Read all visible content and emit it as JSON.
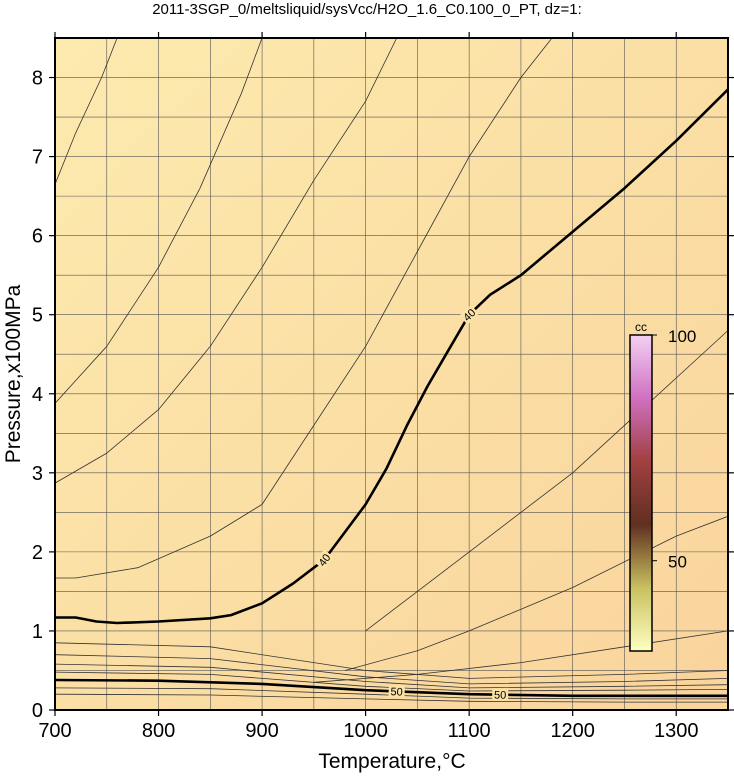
{
  "chart_data": {
    "type": "contour",
    "title": "2011-3SGP_0/meltsliquid/sysVcc/H2O_1.6_C0.100_0_PT, dz=1:",
    "xlabel": "Temperature,°C",
    "ylabel": "Pressure,x100MPa",
    "xlim": [
      700,
      1350
    ],
    "ylim": [
      0,
      8.5
    ],
    "xticks": [
      700,
      800,
      900,
      1000,
      1100,
      1200,
      1300
    ],
    "yticks": [
      0,
      1,
      2,
      3,
      4,
      5,
      6,
      7,
      8
    ],
    "xgrid": [
      750,
      800,
      850,
      900,
      950,
      1000,
      1050,
      1100,
      1150,
      1200,
      1250,
      1300
    ],
    "ygrid": [
      0.5,
      1,
      1.5,
      2,
      2.5,
      3,
      3.5,
      4,
      4.5,
      5,
      5.5,
      6,
      6.5,
      7,
      7.5,
      8
    ],
    "grid": true,
    "contours": [
      {
        "level": 40,
        "color": "#000000",
        "x": [
          700,
          720,
          740,
          760,
          800,
          850,
          870,
          900,
          930,
          960,
          980,
          1000,
          1020,
          1040,
          1060,
          1080,
          1100,
          1120,
          1150,
          1200,
          1250,
          1300,
          1350
        ],
        "y": [
          1.17,
          1.17,
          1.12,
          1.1,
          1.12,
          1.16,
          1.2,
          1.35,
          1.6,
          1.9,
          2.25,
          2.6,
          3.05,
          3.6,
          4.1,
          4.55,
          5.0,
          5.25,
          5.5,
          6.05,
          6.6,
          7.2,
          7.85
        ]
      },
      {
        "level": 50,
        "color": "#000000",
        "x": [
          700,
          800,
          900,
          1000,
          1100,
          1200,
          1350
        ],
        "y": [
          0.38,
          0.37,
          0.33,
          0.25,
          0.2,
          0.18,
          0.18
        ]
      },
      {
        "color": "#333333",
        "x": [
          700,
          720,
          745,
          760
        ],
        "y": [
          6.65,
          7.3,
          8.0,
          8.5
        ]
      },
      {
        "color": "#333333",
        "x": [
          700,
          750,
          800,
          840,
          880,
          900
        ],
        "y": [
          3.88,
          4.6,
          5.6,
          6.6,
          7.8,
          8.5
        ]
      },
      {
        "color": "#333333",
        "x": [
          700,
          750,
          800,
          850,
          900,
          950,
          1000,
          1030
        ],
        "y": [
          2.87,
          3.25,
          3.8,
          4.6,
          5.6,
          6.7,
          7.7,
          8.5
        ]
      },
      {
        "color": "#333333",
        "x": [
          700,
          720,
          780,
          850,
          900,
          950,
          1000,
          1050,
          1100,
          1150,
          1180
        ],
        "y": [
          1.67,
          1.67,
          1.8,
          2.2,
          2.6,
          3.6,
          4.6,
          5.8,
          7.0,
          8.0,
          8.5
        ]
      },
      {
        "color": "#333333",
        "x": [
          1000,
          1050,
          1100,
          1200,
          1300,
          1350
        ],
        "y": [
          1.0,
          1.5,
          2.0,
          3.0,
          4.2,
          4.8
        ]
      },
      {
        "color": "#333333",
        "x": [
          980,
          1050,
          1100,
          1200,
          1300,
          1350
        ],
        "y": [
          0.5,
          0.75,
          1.0,
          1.55,
          2.2,
          2.45
        ]
      },
      {
        "color": "#333333",
        "x": [
          950,
          1050,
          1150,
          1250,
          1350
        ],
        "y": [
          0.35,
          0.45,
          0.6,
          0.8,
          1.0
        ]
      },
      {
        "color": "#333333",
        "x": [
          700,
          850,
          1000,
          1100,
          1250,
          1350
        ],
        "y": [
          0.85,
          0.8,
          0.5,
          0.4,
          0.45,
          0.5
        ]
      },
      {
        "color": "#333333",
        "x": [
          700,
          850,
          1000,
          1100,
          1250,
          1350
        ],
        "y": [
          0.7,
          0.65,
          0.42,
          0.33,
          0.36,
          0.4
        ]
      },
      {
        "color": "#333333",
        "x": [
          700,
          850,
          1000,
          1100,
          1250,
          1350
        ],
        "y": [
          0.58,
          0.54,
          0.36,
          0.28,
          0.3,
          0.32
        ]
      },
      {
        "color": "#333333",
        "x": [
          700,
          850,
          1000,
          1100,
          1250,
          1350
        ],
        "y": [
          0.48,
          0.45,
          0.3,
          0.24,
          0.25,
          0.26
        ]
      },
      {
        "color": "#333333",
        "x": [
          700,
          850,
          1000,
          1100,
          1250,
          1350
        ],
        "y": [
          0.28,
          0.27,
          0.2,
          0.15,
          0.14,
          0.14
        ]
      },
      {
        "color": "#333333",
        "x": [
          700,
          850,
          1000,
          1100,
          1250,
          1350
        ],
        "y": [
          0.2,
          0.19,
          0.14,
          0.11,
          0.1,
          0.1
        ]
      }
    ],
    "colorbar": {
      "title": "cc",
      "lim": [
        30,
        100
      ],
      "ticks": [
        50,
        100
      ],
      "colors": [
        "#ffffc0",
        "#c8c060",
        "#603020",
        "#a04040",
        "#d070c0",
        "#f4d0f4"
      ]
    }
  }
}
